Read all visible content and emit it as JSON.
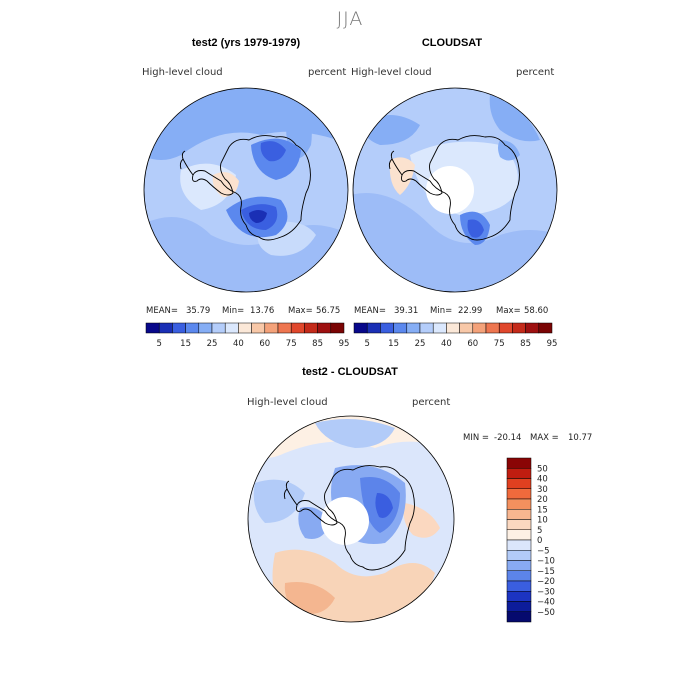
{
  "figure": {
    "season": "JJA"
  },
  "panels": [
    {
      "title": "test2 (yrs 1979-1979)",
      "variable": "High-level cloud",
      "units": "percent",
      "mean_label": "MEAN=",
      "mean": "35.79",
      "min_label": "Min=",
      "min": "13.76",
      "max_label": "Max=",
      "max": "56.75"
    },
    {
      "title": "CLOUDSAT",
      "variable": "High-level cloud",
      "units": "percent",
      "mean_label": "MEAN=",
      "mean": "39.31",
      "min_label": "Min=",
      "min": "22.99",
      "max_label": "Max=",
      "max": "58.60"
    },
    {
      "title": "test2 - CLOUDSAT",
      "variable": "High-level cloud",
      "units": "percent",
      "min_label": "MIN =",
      "min": "-20.14",
      "max_label": "MAX =",
      "max": "10.77"
    }
  ],
  "chart_data": [
    {
      "type": "heatmap",
      "projection": "south-polar-stereographic",
      "title": "test2 (yrs 1979-1979)",
      "variable": "High-level cloud",
      "units": "percent",
      "stats": {
        "mean": 35.79,
        "min": 13.76,
        "max": 56.75
      },
      "colorbar_labels": [
        "5",
        "15",
        "25",
        "40",
        "60",
        "75",
        "85",
        "95"
      ],
      "colorbar_colors": [
        "#08088a",
        "#1a2fb5",
        "#3a5fe0",
        "#5b88ee",
        "#86aef5",
        "#b4cdfa",
        "#dbe8fd",
        "#fbe8d8",
        "#f8c8a8",
        "#f4a27a",
        "#ee7650",
        "#e0472c",
        "#c42a1a",
        "#9e1010",
        "#7a0404"
      ]
    },
    {
      "type": "heatmap",
      "projection": "south-polar-stereographic",
      "title": "CLOUDSAT",
      "variable": "High-level cloud",
      "units": "percent",
      "stats": {
        "mean": 39.31,
        "min": 22.99,
        "max": 58.6
      },
      "colorbar_labels": [
        "5",
        "15",
        "25",
        "40",
        "60",
        "75",
        "85",
        "95"
      ],
      "colorbar_colors": [
        "#08088a",
        "#1a2fb5",
        "#3a5fe0",
        "#5b88ee",
        "#86aef5",
        "#b4cdfa",
        "#dbe8fd",
        "#fbe8d8",
        "#f8c8a8",
        "#f4a27a",
        "#ee7650",
        "#e0472c",
        "#c42a1a",
        "#9e1010",
        "#7a0404"
      ]
    },
    {
      "type": "heatmap",
      "projection": "south-polar-stereographic",
      "title": "test2 - CLOUDSAT",
      "variable": "High-level cloud",
      "units": "percent",
      "stats": {
        "min": -20.14,
        "max": 10.77
      },
      "colorbar_labels": [
        "50",
        "40",
        "30",
        "20",
        "15",
        "10",
        "5",
        "0",
        "−5",
        "−10",
        "−15",
        "−20",
        "−30",
        "−40",
        "−50"
      ],
      "colorbar_colors": [
        "#8a0505",
        "#c01d10",
        "#e04020",
        "#f06a3c",
        "#f4905e",
        "#f8b690",
        "#fbd8c0",
        "#fdf0e4",
        "#dbe6fb",
        "#b2cbf8",
        "#88aaf2",
        "#5c84ea",
        "#3a5ee0",
        "#1c34c2",
        "#0c1c9a",
        "#050a6e"
      ]
    }
  ]
}
